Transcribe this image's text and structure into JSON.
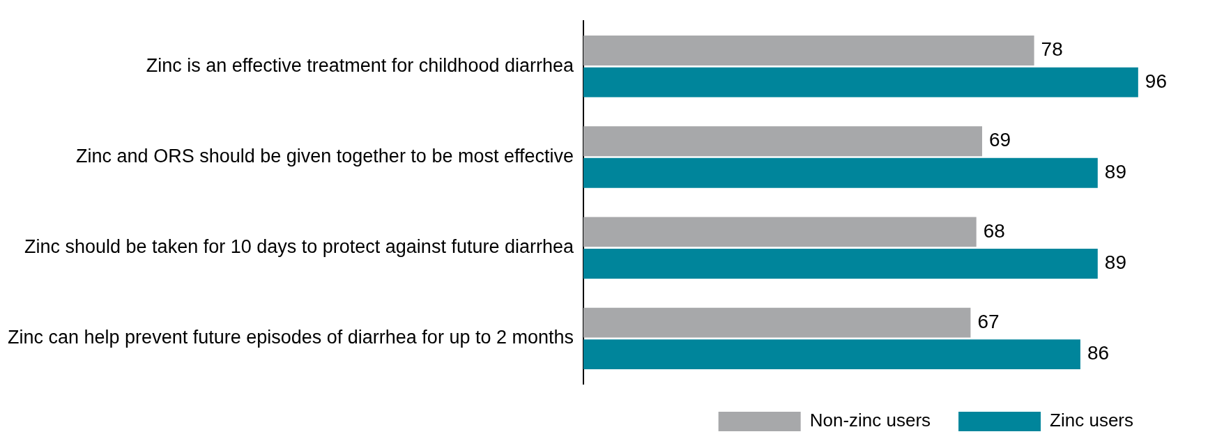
{
  "chart_data": {
    "type": "bar",
    "orientation": "horizontal",
    "categories": [
      "Zinc is an effective treatment for childhood diarrhea",
      "Zinc and ORS should be given together to be most effective",
      "Zinc should be taken for 10 days to protect against future diarrhea",
      "Zinc can help prevent future episodes of diarrhea for up to 2 months"
    ],
    "series": [
      {
        "name": "Non-zinc users",
        "color": "#a7a8aa",
        "values": [
          78,
          69,
          68,
          67
        ]
      },
      {
        "name": "Zinc users",
        "color": "#00859b",
        "values": [
          96,
          89,
          89,
          86
        ]
      }
    ],
    "data_labels": true,
    "legend": "bottom right",
    "tick_labels": "y"
  }
}
